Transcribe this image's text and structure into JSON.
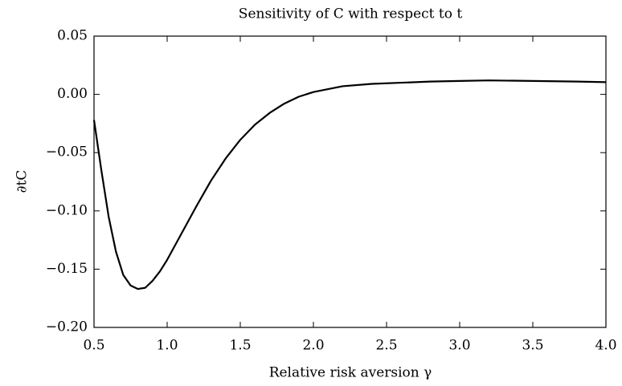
{
  "chart_data": {
    "type": "line",
    "title": "Sensitivity of C with respect to t",
    "xlabel": "Relative risk aversion γ",
    "ylabel": "∂tC",
    "x": [
      0.5,
      0.55,
      0.6,
      0.65,
      0.7,
      0.75,
      0.8,
      0.85,
      0.9,
      0.95,
      1.0,
      1.1,
      1.2,
      1.3,
      1.4,
      1.5,
      1.6,
      1.7,
      1.8,
      1.9,
      2.0,
      2.2,
      2.4,
      2.6,
      2.8,
      3.0,
      3.2,
      3.5,
      3.8,
      4.0
    ],
    "series": [
      {
        "color": "#000000",
        "values": [
          -0.022,
          -0.065,
          -0.105,
          -0.135,
          -0.155,
          -0.164,
          -0.167,
          -0.166,
          -0.16,
          -0.152,
          -0.142,
          -0.119,
          -0.096,
          -0.074,
          -0.055,
          -0.039,
          -0.026,
          -0.016,
          -0.008,
          -0.002,
          0.002,
          0.007,
          0.009,
          0.01,
          0.011,
          0.0115,
          0.012,
          0.0115,
          0.011,
          0.0105
        ]
      }
    ],
    "xlim": [
      0.5,
      4.0
    ],
    "ylim": [
      -0.2,
      0.05
    ],
    "xticks": [
      0.5,
      {
        "value": 1.0,
        "label": "1.0"
      },
      1.5,
      {
        "value": 2.0,
        "label": "2.0"
      },
      2.5,
      {
        "value": 3.0,
        "label": "3.0"
      },
      3.5,
      {
        "value": 4.0,
        "label": "4.0"
      }
    ],
    "yticks": [
      {
        "value": -0.2,
        "label": "−0.20"
      },
      {
        "value": -0.15,
        "label": "−0.15"
      },
      {
        "value": -0.1,
        "label": "−0.10"
      },
      {
        "value": -0.05,
        "label": "−0.05"
      },
      {
        "value": 0.0,
        "label": "0.00"
      },
      0.05
    ],
    "grid": false
  }
}
